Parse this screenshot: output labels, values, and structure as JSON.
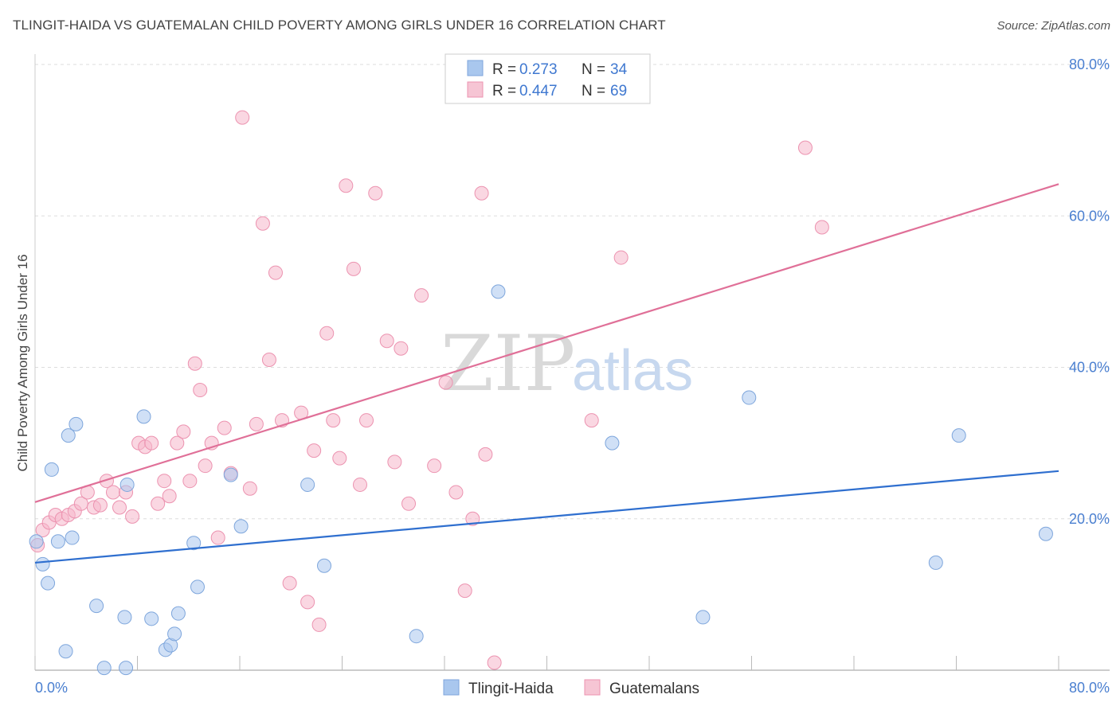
{
  "header": {
    "title": "TLINGIT-HAIDA VS GUATEMALAN CHILD POVERTY AMONG GIRLS UNDER 16 CORRELATION CHART",
    "source": "Source: ZipAtlas.com"
  },
  "watermark": {
    "zip": "ZIP",
    "atlas": "atlas"
  },
  "legend_top": {
    "rows": [
      {
        "r_label": "R = ",
        "r_value": "0.273",
        "n_label": "N = ",
        "n_value": "34"
      },
      {
        "r_label": "R = ",
        "r_value": "0.447",
        "n_label": "N = ",
        "n_value": "69"
      }
    ]
  },
  "legend_bottom": {
    "items": [
      "Tlingit-Haida",
      "Guatemalans"
    ]
  },
  "colors": {
    "blue_fill": "#a9c7ee",
    "blue_stroke": "#7ea6dc",
    "blue_line": "#2f6fcf",
    "pink_fill": "#f6b6ca",
    "pink_stroke": "#ec93b0",
    "pink_line": "#e07098",
    "grid": "#dddddd",
    "tick_text": "#4a7fd0"
  },
  "chart_data": {
    "type": "scatter",
    "title": "TLINGIT-HAIDA VS GUATEMALAN CHILD POVERTY AMONG GIRLS UNDER 16 CORRELATION CHART",
    "xlabel": "",
    "ylabel": "Child Poverty Among Girls Under 16",
    "xlim": [
      0,
      80
    ],
    "ylim": [
      0,
      80
    ],
    "x_tick_labels": [
      "0.0%",
      "80.0%"
    ],
    "y_ticks": [
      20,
      40,
      60,
      80
    ],
    "y_tick_labels": [
      "20.0%",
      "40.0%",
      "60.0%",
      "80.0%"
    ],
    "grid": true,
    "legend_position": "top-center",
    "series": [
      {
        "name": "Tlingit-Haida",
        "R": 0.273,
        "N": 34,
        "trend": {
          "x": [
            0,
            80
          ],
          "y": [
            14.2,
            26.3
          ]
        },
        "points": [
          [
            0.1,
            17.0
          ],
          [
            0.6,
            14.0
          ],
          [
            1.0,
            11.5
          ],
          [
            1.3,
            26.5
          ],
          [
            1.8,
            17.0
          ],
          [
            2.4,
            2.5
          ],
          [
            2.6,
            31.0
          ],
          [
            2.9,
            17.5
          ],
          [
            3.2,
            32.5
          ],
          [
            4.8,
            8.5
          ],
          [
            5.4,
            0.3
          ],
          [
            7.0,
            7.0
          ],
          [
            7.1,
            0.3
          ],
          [
            7.2,
            24.5
          ],
          [
            8.5,
            33.5
          ],
          [
            9.1,
            6.8
          ],
          [
            10.2,
            2.7
          ],
          [
            10.6,
            3.3
          ],
          [
            10.9,
            4.8
          ],
          [
            11.2,
            7.5
          ],
          [
            12.4,
            16.8
          ],
          [
            12.7,
            11.0
          ],
          [
            15.3,
            25.8
          ],
          [
            16.1,
            19.0
          ],
          [
            21.3,
            24.5
          ],
          [
            22.6,
            13.8
          ],
          [
            29.8,
            4.5
          ],
          [
            36.2,
            50.0
          ],
          [
            45.1,
            30.0
          ],
          [
            52.2,
            7.0
          ],
          [
            55.8,
            36.0
          ],
          [
            70.4,
            14.2
          ],
          [
            72.2,
            31.0
          ],
          [
            79.0,
            18.0
          ]
        ]
      },
      {
        "name": "Guatemalans",
        "R": 0.447,
        "N": 69,
        "trend": {
          "x": [
            0,
            80
          ],
          "y": [
            22.2,
            64.2
          ]
        },
        "points": [
          [
            0.2,
            16.5
          ],
          [
            0.6,
            18.5
          ],
          [
            1.1,
            19.5
          ],
          [
            1.6,
            20.5
          ],
          [
            2.1,
            20.0
          ],
          [
            2.6,
            20.5
          ],
          [
            3.1,
            21.0
          ],
          [
            3.6,
            22.0
          ],
          [
            4.1,
            23.5
          ],
          [
            4.6,
            21.5
          ],
          [
            5.1,
            21.8
          ],
          [
            5.6,
            25.0
          ],
          [
            6.1,
            23.5
          ],
          [
            6.6,
            21.5
          ],
          [
            7.1,
            23.5
          ],
          [
            7.6,
            20.3
          ],
          [
            8.1,
            30.0
          ],
          [
            8.6,
            29.5
          ],
          [
            9.1,
            30.0
          ],
          [
            9.6,
            22.0
          ],
          [
            10.1,
            25.0
          ],
          [
            10.5,
            23.0
          ],
          [
            11.1,
            30.0
          ],
          [
            11.6,
            31.5
          ],
          [
            12.1,
            25.0
          ],
          [
            12.5,
            40.5
          ],
          [
            12.9,
            37.0
          ],
          [
            13.3,
            27.0
          ],
          [
            13.8,
            30.0
          ],
          [
            14.3,
            17.5
          ],
          [
            14.8,
            32.0
          ],
          [
            15.3,
            26.0
          ],
          [
            16.2,
            73.0
          ],
          [
            16.8,
            24.0
          ],
          [
            17.3,
            32.5
          ],
          [
            17.8,
            59.0
          ],
          [
            18.3,
            41.0
          ],
          [
            18.8,
            52.5
          ],
          [
            19.3,
            33.0
          ],
          [
            19.9,
            11.5
          ],
          [
            20.8,
            34.0
          ],
          [
            21.3,
            9.0
          ],
          [
            21.8,
            29.0
          ],
          [
            22.2,
            6.0
          ],
          [
            22.8,
            44.5
          ],
          [
            23.3,
            33.0
          ],
          [
            23.8,
            28.0
          ],
          [
            24.3,
            64.0
          ],
          [
            24.9,
            53.0
          ],
          [
            25.4,
            24.5
          ],
          [
            25.9,
            33.0
          ],
          [
            26.6,
            63.0
          ],
          [
            27.5,
            43.5
          ],
          [
            28.1,
            27.5
          ],
          [
            28.6,
            42.5
          ],
          [
            29.2,
            22.0
          ],
          [
            30.2,
            49.5
          ],
          [
            31.2,
            27.0
          ],
          [
            32.1,
            38.0
          ],
          [
            32.9,
            23.5
          ],
          [
            33.6,
            10.5
          ],
          [
            34.2,
            20.0
          ],
          [
            34.9,
            63.0
          ],
          [
            35.2,
            28.5
          ],
          [
            35.9,
            1.0
          ],
          [
            43.5,
            33.0
          ],
          [
            45.8,
            54.5
          ],
          [
            60.2,
            69.0
          ],
          [
            61.5,
            58.5
          ]
        ]
      }
    ]
  }
}
